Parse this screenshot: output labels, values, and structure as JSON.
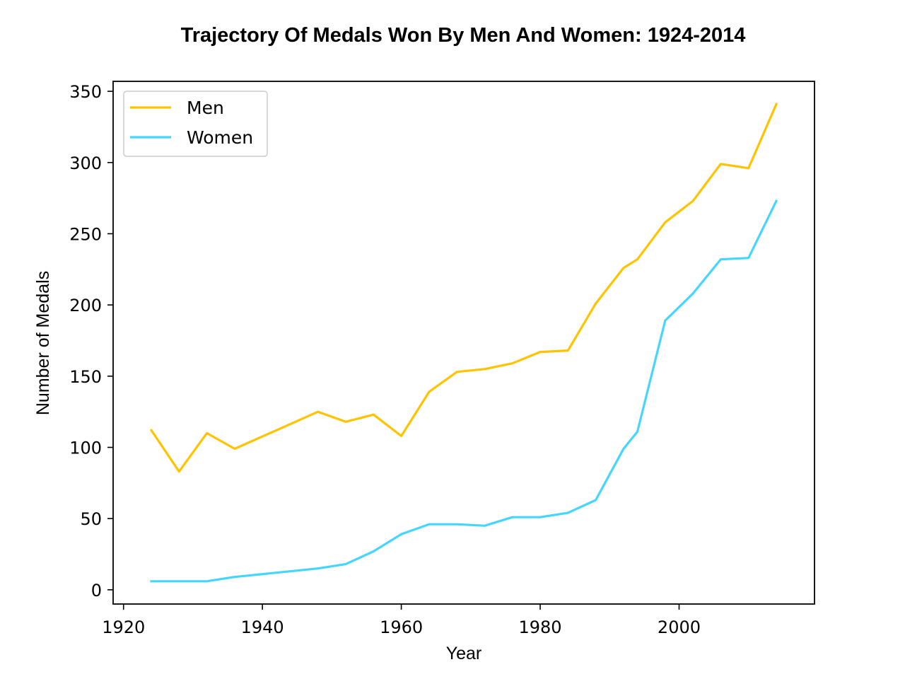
{
  "chart_data": {
    "type": "line",
    "title": "Trajectory Of Medals Won By Men And Women: 1924-2014",
    "xlabel": "Year",
    "ylabel": "Number of Medals",
    "xlim": [
      1918.5,
      2019.5
    ],
    "ylim": [
      -10,
      357
    ],
    "x_ticks": [
      1920,
      1940,
      1960,
      1980,
      2000
    ],
    "y_ticks": [
      0,
      50,
      100,
      150,
      200,
      250,
      300,
      350
    ],
    "grid": false,
    "legend_position": "top-left",
    "x": [
      1924,
      1928,
      1932,
      1936,
      1948,
      1952,
      1956,
      1960,
      1964,
      1968,
      1972,
      1976,
      1980,
      1984,
      1988,
      1992,
      1994,
      1998,
      2002,
      2006,
      2010,
      2014
    ],
    "series": [
      {
        "name": "Men",
        "color": "#FFC300",
        "values": [
          112,
          83,
          110,
          99,
          125,
          118,
          123,
          108,
          139,
          153,
          155,
          159,
          167,
          168,
          201,
          226,
          232,
          258,
          273,
          299,
          296,
          341
        ]
      },
      {
        "name": "Women",
        "color": "#44D6FF",
        "values": [
          6,
          6,
          6,
          9,
          15,
          18,
          27,
          39,
          46,
          46,
          45,
          51,
          51,
          54,
          63,
          99,
          111,
          189,
          208,
          232,
          233,
          273
        ]
      }
    ]
  }
}
